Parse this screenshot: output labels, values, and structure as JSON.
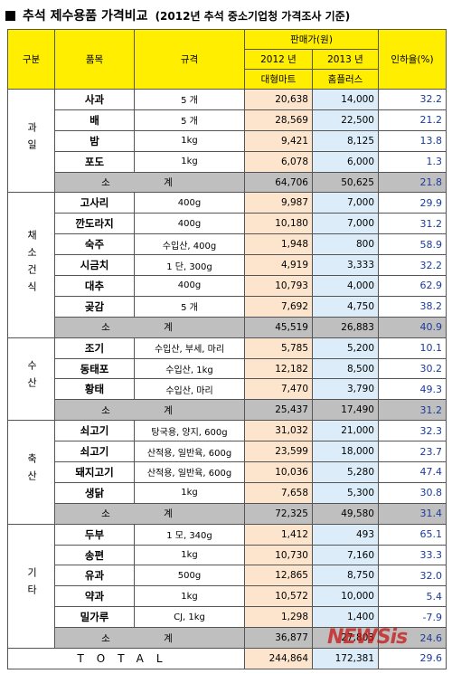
{
  "header": {
    "title": "추석 제수용품 가격비교",
    "subtitle": "(2012년 추석 중소기업청 가격조사 기준)"
  },
  "table": {
    "columns": {
      "group": "구분",
      "item": "품목",
      "spec": "규격",
      "price": "판매가(원)",
      "year_2012": "2012 년",
      "year_2013": "2013 년",
      "store_2012": "대형마트",
      "store_2013": "홈플러스",
      "rate": "인하율(%)"
    },
    "groups": [
      {
        "name": "과일",
        "items": [
          [
            "사과",
            "5 개",
            "20,638",
            "14,000",
            "32.2"
          ],
          [
            "배",
            "5 개",
            "28,569",
            "22,500",
            "21.2"
          ],
          [
            "밤",
            "1kg",
            "9,421",
            "8,125",
            "13.8"
          ],
          [
            "포도",
            "1kg",
            "6,078",
            "6,000",
            "1.3"
          ]
        ],
        "subtotal": [
          "소 계",
          "64,706",
          "50,625",
          "21.8"
        ]
      },
      {
        "name": "채소건식",
        "items": [
          [
            "고사리",
            "400g",
            "9,987",
            "7,000",
            "29.9"
          ],
          [
            "깐도라지",
            "400g",
            "10,180",
            "7,000",
            "31.2"
          ],
          [
            "숙주",
            "수입산, 400g",
            "1,948",
            "800",
            "58.9"
          ],
          [
            "시금치",
            "1 단, 300g",
            "4,919",
            "3,333",
            "32.2"
          ],
          [
            "대추",
            "400g",
            "10,793",
            "4,000",
            "62.9"
          ],
          [
            "곶감",
            "5 개",
            "7,692",
            "4,750",
            "38.2"
          ]
        ],
        "subtotal": [
          "소 계",
          "45,519",
          "26,883",
          "40.9"
        ]
      },
      {
        "name": "수산",
        "items": [
          [
            "조기",
            "수입산, 부세, 마리",
            "5,785",
            "5,200",
            "10.1"
          ],
          [
            "동태포",
            "수입산, 1kg",
            "12,182",
            "8,500",
            "30.2"
          ],
          [
            "황태",
            "수입산, 마리",
            "7,470",
            "3,790",
            "49.3"
          ]
        ],
        "subtotal": [
          "소 계",
          "25,437",
          "17,490",
          "31.2"
        ]
      },
      {
        "name": "축산",
        "items": [
          [
            "쇠고기",
            "탕국용, 양지, 600g",
            "31,032",
            "21,000",
            "32.3"
          ],
          [
            "쇠고기",
            "산적용, 일반육, 600g",
            "23,599",
            "18,000",
            "23.7"
          ],
          [
            "돼지고기",
            "산적용, 일반육, 600g",
            "10,036",
            "5,280",
            "47.4"
          ],
          [
            "생닭",
            "1kg",
            "7,658",
            "5,300",
            "30.8"
          ]
        ],
        "subtotal": [
          "소 계",
          "72,325",
          "49,580",
          "31.4"
        ]
      },
      {
        "name": "기타",
        "items": [
          [
            "두부",
            "1 모, 340g",
            "1,412",
            "493",
            "65.1"
          ],
          [
            "송편",
            "1kg",
            "10,730",
            "7,160",
            "33.3"
          ],
          [
            "유과",
            "500g",
            "12,865",
            "8,750",
            "32.0"
          ],
          [
            "약과",
            "1kg",
            "10,572",
            "10,000",
            "5.4"
          ],
          [
            "밀가루",
            "CJ, 1kg",
            "1,298",
            "1,400",
            "-7.9"
          ]
        ],
        "subtotal": [
          "소 계",
          "36,877",
          "27,803",
          "24.6"
        ]
      }
    ],
    "total": [
      "TOTAL",
      "244,864",
      "172,381",
      "29.6"
    ]
  },
  "watermark": "NEWSis"
}
